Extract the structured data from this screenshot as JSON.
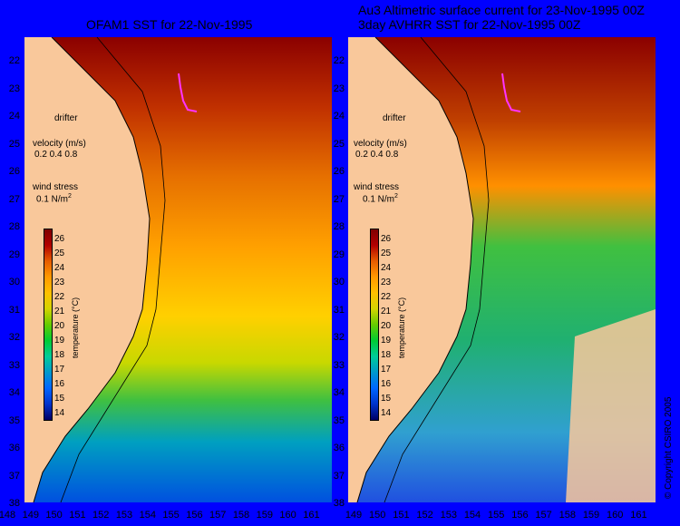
{
  "left_panel": {
    "title": "OFAM1 SST for 22-Nov-1995"
  },
  "right_panel": {
    "title_line1": "Au3 Altimetric surface current for 23-Nov-1995 00Z",
    "title_line2": "3day AVHRR SST for 22-Nov-1995 00Z"
  },
  "legend": {
    "drifter": "drifter",
    "velocity_label": "velocity (m/s)",
    "velocity_values": "0.2 0.4 0.8",
    "wind_label": "wind stress",
    "wind_value": "0.1 N/m",
    "wind_superscript": "2"
  },
  "colorbar": {
    "ticks": [
      "26",
      "25",
      "24",
      "23",
      "22",
      "21",
      "20",
      "19",
      "18",
      "17",
      "16",
      "15",
      "14"
    ],
    "unit": "temperature (°C)",
    "colors": [
      "#7f0000",
      "#b20000",
      "#e65c00",
      "#ff9900",
      "#ffc000",
      "#d4d400",
      "#66cc00",
      "#00cc33",
      "#00cc99",
      "#0099cc",
      "#0066ff",
      "#0033cc",
      "#000066"
    ]
  },
  "latitude_ticks": [
    "22",
    "23",
    "24",
    "25",
    "26",
    "27",
    "28",
    "29",
    "30",
    "31",
    "32",
    "33",
    "34",
    "35",
    "36",
    "37",
    "38"
  ],
  "longitude_ticks_left": [
    "148",
    "149",
    "150",
    "151",
    "152",
    "153",
    "154",
    "155",
    "156",
    "157",
    "158",
    "159",
    "160",
    "161"
  ],
  "longitude_ticks_right": [
    "149",
    "150",
    "151",
    "152",
    "153",
    "154",
    "155",
    "156",
    "157",
    "158",
    "159",
    "160",
    "161"
  ],
  "copyright": "© Copyright CSIRO 2005",
  "colors": {
    "background": "#0000ff",
    "land": "#f9c89b",
    "drifter_track": "#ff33ff"
  }
}
